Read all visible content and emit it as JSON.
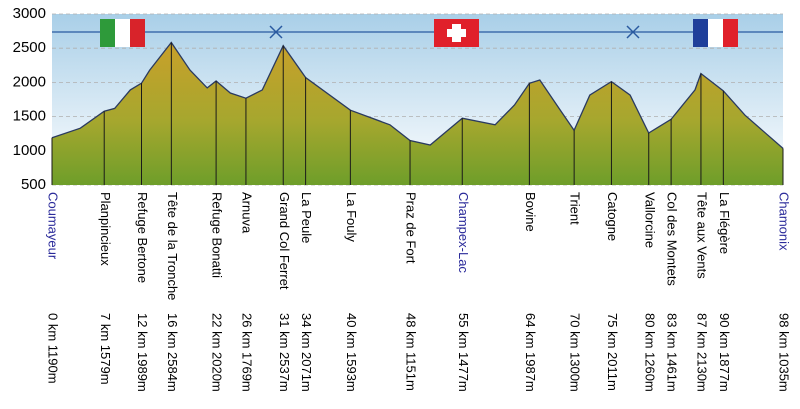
{
  "chart_data": {
    "type": "area",
    "x": [
      0,
      3.8,
      7,
      8.4,
      10.5,
      12,
      13.1,
      16,
      18.5,
      20.8,
      22,
      23.9,
      26,
      28.2,
      31,
      34,
      40,
      45.3,
      48,
      50.7,
      55,
      59.4,
      62,
      64,
      65.4,
      68.1,
      70,
      72.1,
      75,
      77.5,
      80,
      83,
      86.2,
      87,
      90,
      92.9,
      98
    ],
    "values": [
      1190,
      1330,
      1579,
      1620,
      1890,
      1989,
      2180,
      2584,
      2180,
      1920,
      2020,
      1845,
      1769,
      1890,
      2537,
      2071,
      1593,
      1380,
      1151,
      1085,
      1477,
      1380,
      1670,
      1987,
      2035,
      1600,
      1300,
      1815,
      2011,
      1815,
      1260,
      1461,
      1890,
      2130,
      1877,
      1520,
      1035
    ],
    "xlim": [
      0,
      98
    ],
    "ylim": [
      500,
      3000
    ],
    "yticks": [
      500,
      1000,
      1500,
      2000,
      2500,
      3000
    ],
    "grid": true,
    "color": "#8aa832",
    "waypoints": {
      "names": [
        "Coumayeur",
        "Planpincieux",
        "Refuge Bertone",
        "Tête de la Tronche",
        "Refuge Bonatti",
        "Arnuva",
        "Grand Col Ferret",
        "La Peule",
        "La Fouly",
        "Praz de Fort",
        "Champex-Lac",
        "Bovine",
        "Trient",
        "Catogne",
        "Vallorcine",
        "Col des Montets",
        "Tête aux Vents",
        "La Flégère",
        "Chamonix"
      ],
      "x": [
        0,
        7,
        12,
        16,
        22,
        26,
        31,
        34,
        40,
        48,
        55,
        64,
        70,
        75,
        80,
        83,
        87,
        90,
        98
      ],
      "values": [
        1190,
        1579,
        1989,
        2584,
        2020,
        1769,
        2537,
        2071,
        1593,
        1151,
        1477,
        1987,
        1300,
        2011,
        1260,
        1461,
        2130,
        1877,
        1035
      ],
      "value_labels": [
        "0 km 1190m",
        "7 km 1579m",
        "12 km 1989m",
        "16 km 2584m",
        "22 km 2020m",
        "26 km 1769m",
        "31 km 2537m",
        "34 km 2071m",
        "40 km 1593m",
        "48 km 1151m",
        "55 km 1477m",
        "64 km 1987m",
        "70 km 1300m",
        "75 km 2011m",
        "80 km 1260m",
        "83 km 1461m",
        "87 km 2130m",
        "90 km 1877m",
        "98 km 1035m"
      ],
      "name_colors": [
        "#2a2a9a",
        "#000000",
        "#000000",
        "#000000",
        "#000000",
        "#000000",
        "#000000",
        "#000000",
        "#000000",
        "#000000",
        "#2a2a9a",
        "#000000",
        "#000000",
        "#000000",
        "#000000",
        "#000000",
        "#000000",
        "#000000",
        "#2a2a9a"
      ]
    }
  }
}
